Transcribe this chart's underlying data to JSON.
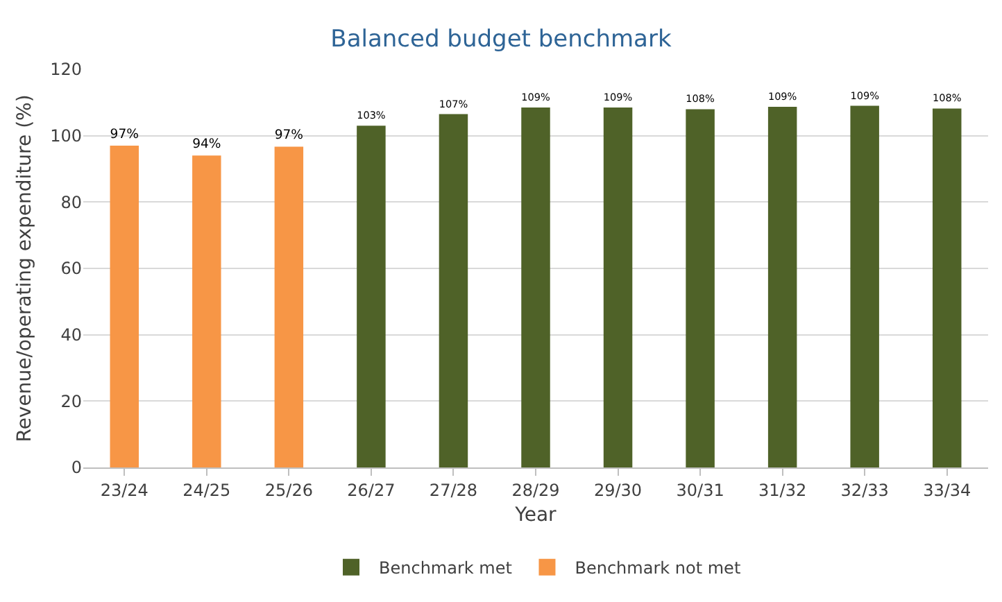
{
  "chart_data": {
    "type": "bar",
    "title": "Balanced budget benchmark",
    "xlabel": "Year",
    "ylabel": "Revenue/operating expenditure (%)",
    "categories": [
      "23/24",
      "24/25",
      "25/26",
      "26/27",
      "27/28",
      "28/29",
      "29/30",
      "30/31",
      "31/32",
      "32/33",
      "33/34"
    ],
    "series": [
      {
        "name": "Benchmark met",
        "color": "#4f6228",
        "values": [
          null,
          null,
          null,
          103,
          106.5,
          108.5,
          108.5,
          108,
          108.7,
          109,
          108.2
        ],
        "value_labels": [
          null,
          null,
          null,
          "103%",
          "107%",
          "109%",
          "109%",
          "108%",
          "109%",
          "109%",
          "108%"
        ]
      },
      {
        "name": "Benchmark not met",
        "color": "#f79646",
        "values": [
          97,
          94,
          96.7,
          null,
          null,
          null,
          null,
          null,
          null,
          null,
          null
        ],
        "value_labels": [
          "97%",
          "94%",
          "97%",
          null,
          null,
          null,
          null,
          null,
          null,
          null,
          null
        ]
      }
    ],
    "ylim": [
      0,
      120
    ],
    "yticks": [
      0,
      20,
      40,
      60,
      80,
      100,
      120
    ],
    "grid": "y",
    "legend": "bottom"
  }
}
